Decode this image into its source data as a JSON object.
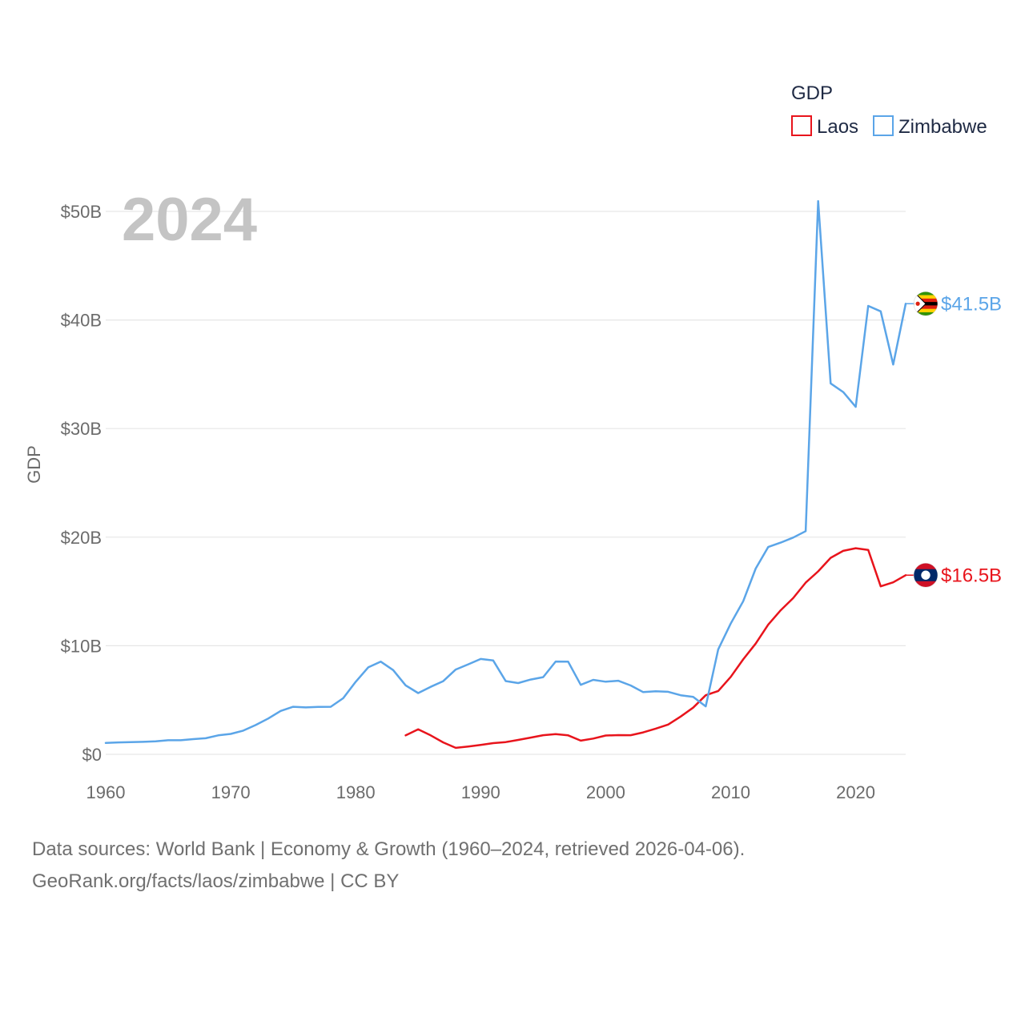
{
  "chart_data": {
    "type": "line",
    "title": "",
    "xlabel": "",
    "ylabel": "GDP",
    "current_year": "2024",
    "legend": {
      "title": "GDP",
      "position": "top-right"
    },
    "xlim": [
      1960,
      2024
    ],
    "ylim": [
      0,
      50000000000
    ],
    "x_ticks": [
      1960,
      1970,
      1980,
      1990,
      2000,
      2010,
      2020
    ],
    "y_ticks": [
      {
        "value": 0,
        "label": "$0"
      },
      {
        "value": 10000000000,
        "label": "$10B"
      },
      {
        "value": 20000000000,
        "label": "$20B"
      },
      {
        "value": 30000000000,
        "label": "$30B"
      },
      {
        "value": 40000000000,
        "label": "$40B"
      },
      {
        "value": 50000000000,
        "label": "$50B"
      }
    ],
    "grid": true,
    "series": [
      {
        "name": "Laos",
        "color": "#e8141c",
        "end_label": "$16.5B",
        "flag_icon": "laos-flag-icon",
        "x": [
          1984,
          1985,
          1986,
          1987,
          1988,
          1989,
          1990,
          1991,
          1992,
          1993,
          1994,
          1995,
          1996,
          1997,
          1998,
          1999,
          2000,
          2001,
          2002,
          2003,
          2004,
          2005,
          2006,
          2007,
          2008,
          2009,
          2010,
          2011,
          2012,
          2013,
          2014,
          2015,
          2016,
          2017,
          2018,
          2019,
          2020,
          2021,
          2022,
          2023,
          2024
        ],
        "y": [
          1.75,
          2.3,
          1.75,
          1.1,
          0.6,
          0.72,
          0.87,
          1.03,
          1.13,
          1.33,
          1.54,
          1.76,
          1.86,
          1.75,
          1.26,
          1.45,
          1.73,
          1.77,
          1.76,
          2.02,
          2.37,
          2.74,
          3.48,
          4.3,
          5.44,
          5.83,
          7.13,
          8.75,
          10.2,
          11.94,
          13.27,
          14.39,
          15.81,
          16.85,
          18.1,
          18.74,
          18.98,
          18.83,
          15.47,
          15.84,
          16.5
        ]
      },
      {
        "name": "Zimbabwe",
        "color": "#5ba5e8",
        "end_label": "$41.5B",
        "flag_icon": "zimbabwe-flag-icon",
        "x": [
          1960,
          1961,
          1962,
          1963,
          1964,
          1965,
          1966,
          1967,
          1968,
          1969,
          1970,
          1971,
          1972,
          1973,
          1974,
          1975,
          1976,
          1977,
          1978,
          1979,
          1980,
          1981,
          1982,
          1983,
          1984,
          1985,
          1986,
          1987,
          1988,
          1989,
          1990,
          1991,
          1992,
          1993,
          1994,
          1995,
          1996,
          1997,
          1998,
          1999,
          2000,
          2001,
          2002,
          2003,
          2004,
          2005,
          2006,
          2007,
          2008,
          2009,
          2010,
          2011,
          2012,
          2013,
          2014,
          2015,
          2016,
          2017,
          2018,
          2019,
          2020,
          2021,
          2022,
          2023,
          2024
        ],
        "y": [
          1.05,
          1.1,
          1.12,
          1.15,
          1.2,
          1.3,
          1.3,
          1.4,
          1.48,
          1.75,
          1.88,
          2.18,
          2.7,
          3.3,
          4.0,
          4.38,
          4.32,
          4.37,
          4.38,
          5.17,
          6.68,
          8.01,
          8.54,
          7.76,
          6.35,
          5.64,
          6.22,
          6.74,
          7.81,
          8.29,
          8.78,
          8.64,
          6.75,
          6.56,
          6.89,
          7.11,
          8.55,
          8.53,
          6.4,
          6.86,
          6.69,
          6.78,
          6.34,
          5.73,
          5.81,
          5.76,
          5.44,
          5.29,
          4.42,
          9.67,
          12.04,
          14.1,
          17.11,
          19.09,
          19.5,
          19.96,
          20.55,
          50.95,
          34.16,
          33.36,
          32.0,
          41.3,
          40.8,
          35.9,
          41.5
        ]
      }
    ]
  },
  "footer": {
    "source_line": "Data sources: World Bank | Economy & Growth (1960–2024, retrieved 2026-04-06).",
    "attribution_line": "GeoRank.org/facts/laos/zimbabwe | CC BY"
  }
}
